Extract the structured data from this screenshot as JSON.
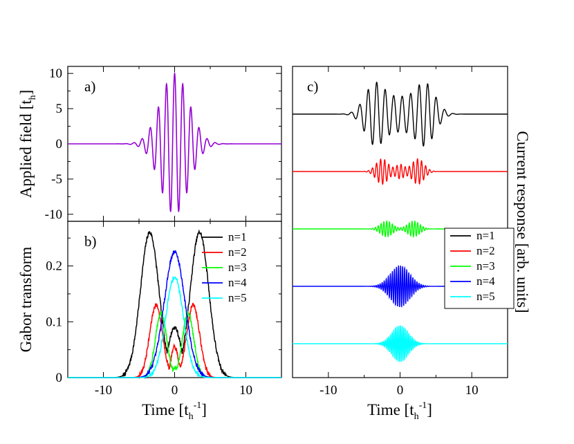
{
  "figure": {
    "xlabel": {
      "main": "Time  [t",
      "sub": "h",
      "sup": "-1",
      "close": "]"
    }
  },
  "chart_data": [
    {
      "id": "a",
      "type": "line",
      "panel_label": "a)",
      "ylabel": {
        "main": "Applied field [t",
        "sub": "h",
        "close": "]"
      },
      "xlim": [
        -15,
        15
      ],
      "ylim": [
        -11,
        11
      ],
      "yticks": [
        -10,
        -5,
        0,
        5,
        10
      ],
      "ytick_labels": [
        "-10",
        "-5",
        "0",
        "5",
        "10"
      ],
      "series": [
        {
          "name": "applied field",
          "color": "#9400d3",
          "model": {
            "kind": "pulse",
            "amplitude": 10,
            "sigma": 2.0,
            "omega": 5.5
          }
        }
      ]
    },
    {
      "id": "b",
      "type": "line",
      "panel_label": "b)",
      "ylabel": {
        "main": "Gabor transform"
      },
      "xlim": [
        -15,
        15
      ],
      "ylim": [
        0,
        0.28
      ],
      "xticks": [
        -10,
        0,
        10
      ],
      "xtick_labels": [
        "-10",
        "0",
        "10"
      ],
      "yticks": [
        0,
        0.1,
        0.2
      ],
      "ytick_labels": [
        "0",
        "0.1",
        "0.2"
      ],
      "legend_position": "top-right",
      "series": [
        {
          "name": "n=1",
          "color": "#000000",
          "peaks": [
            {
              "x": -3.5,
              "y": 0.26,
              "w": 1.3
            },
            {
              "x": 3.5,
              "y": 0.26,
              "w": 1.3
            },
            {
              "x": 0.0,
              "y": 0.09,
              "w": 0.9
            }
          ]
        },
        {
          "name": "n=2",
          "color": "#ff0000",
          "peaks": [
            {
              "x": -2.6,
              "y": 0.13,
              "w": 0.9
            },
            {
              "x": 2.6,
              "y": 0.13,
              "w": 0.9
            },
            {
              "x": 0.0,
              "y": 0.055,
              "w": 0.5
            }
          ]
        },
        {
          "name": "n=3",
          "color": "#00ff00",
          "peaks": [
            {
              "x": -1.9,
              "y": 0.115,
              "w": 0.8
            },
            {
              "x": 1.9,
              "y": 0.115,
              "w": 0.8
            },
            {
              "x": 0.0,
              "y": 0.02,
              "w": 0.3
            }
          ]
        },
        {
          "name": "n=4",
          "color": "#0000ff",
          "peaks": [
            {
              "x": 0.0,
              "y": 0.225,
              "w": 1.45
            }
          ]
        },
        {
          "name": "n=5",
          "color": "#00ffff",
          "peaks": [
            {
              "x": 0.0,
              "y": 0.18,
              "w": 1.25
            }
          ]
        }
      ]
    },
    {
      "id": "c",
      "type": "line",
      "panel_label": "c)",
      "ylabel": {
        "main": "Current response  [arb. units]"
      },
      "xlim": [
        -15,
        15
      ],
      "xticks": [
        -10,
        0,
        10
      ],
      "xtick_labels": [
        "-10",
        "0",
        "10"
      ],
      "legend_position": "right",
      "series": [
        {
          "name": "n=1",
          "color": "#000000",
          "offset": 4,
          "model": {
            "kind": "current",
            "amplitude": 1.0,
            "envelopes": [
              {
                "c": -3.5,
                "w": 1.4,
                "a": 1.0
              },
              {
                "c": 3.5,
                "w": 1.4,
                "a": 1.0
              },
              {
                "c": 0,
                "w": 1.6,
                "a": 0.5
              }
            ],
            "omega": 5.3
          }
        },
        {
          "name": "n=2",
          "color": "#ff0000",
          "offset": 3,
          "model": {
            "kind": "current",
            "amplitude": 0.42,
            "envelopes": [
              {
                "c": -2.5,
                "w": 0.85,
                "a": 1.0
              },
              {
                "c": 2.5,
                "w": 0.85,
                "a": 1.0
              },
              {
                "c": 0,
                "w": 0.6,
                "a": 0.55
              }
            ],
            "omega": 11
          }
        },
        {
          "name": "n=3",
          "color": "#00ff00",
          "offset": 2,
          "model": {
            "kind": "current",
            "amplitude": 0.26,
            "envelopes": [
              {
                "c": -1.9,
                "w": 0.85,
                "a": 1.0
              },
              {
                "c": 1.9,
                "w": 0.85,
                "a": 1.0
              }
            ],
            "omega": 16
          }
        },
        {
          "name": "n=4",
          "color": "#0000ff",
          "offset": 1,
          "model": {
            "kind": "current",
            "amplitude": 0.68,
            "envelopes": [
              {
                "c": 0,
                "w": 1.35,
                "a": 1.0
              }
            ],
            "omega": 22
          }
        },
        {
          "name": "n=5",
          "color": "#00ffff",
          "offset": 0,
          "model": {
            "kind": "current",
            "amplitude": 0.6,
            "envelopes": [
              {
                "c": 0,
                "w": 1.15,
                "a": 1.0
              }
            ],
            "omega": 27
          }
        }
      ]
    }
  ]
}
